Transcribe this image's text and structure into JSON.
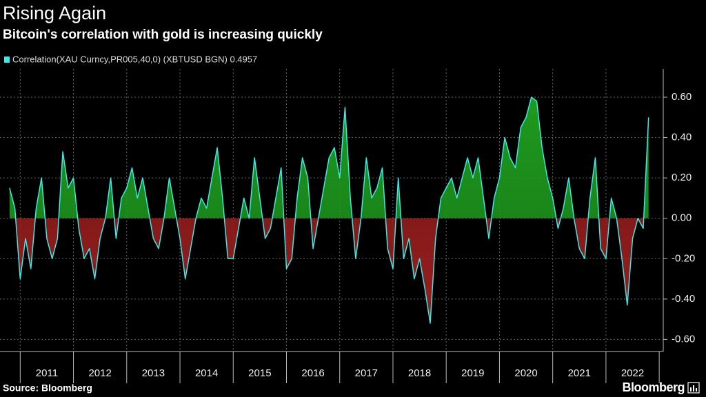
{
  "chart_data": {
    "type": "line",
    "title": "Rising Again",
    "subtitle": "Bitcoin's correlation with gold is increasing quickly",
    "x": [
      2010.8,
      2010.9,
      2011.0,
      2011.1,
      2011.2,
      2011.3,
      2011.4,
      2011.5,
      2011.6,
      2011.7,
      2011.8,
      2011.9,
      2012.0,
      2012.1,
      2012.2,
      2012.3,
      2012.4,
      2012.5,
      2012.6,
      2012.7,
      2012.8,
      2012.9,
      2013.0,
      2013.1,
      2013.2,
      2013.3,
      2013.4,
      2013.5,
      2013.6,
      2013.7,
      2013.8,
      2013.9,
      2014.0,
      2014.1,
      2014.2,
      2014.3,
      2014.4,
      2014.5,
      2014.6,
      2014.7,
      2014.8,
      2014.9,
      2015.0,
      2015.1,
      2015.2,
      2015.3,
      2015.4,
      2015.5,
      2015.6,
      2015.7,
      2015.8,
      2015.9,
      2016.0,
      2016.1,
      2016.2,
      2016.3,
      2016.4,
      2016.5,
      2016.6,
      2016.7,
      2016.8,
      2016.9,
      2017.0,
      2017.1,
      2017.2,
      2017.3,
      2017.4,
      2017.5,
      2017.6,
      2017.7,
      2017.8,
      2017.9,
      2018.0,
      2018.1,
      2018.2,
      2018.3,
      2018.4,
      2018.5,
      2018.6,
      2018.7,
      2018.8,
      2018.9,
      2019.0,
      2019.1,
      2019.2,
      2019.3,
      2019.4,
      2019.5,
      2019.6,
      2019.7,
      2019.8,
      2019.9,
      2020.0,
      2020.1,
      2020.2,
      2020.3,
      2020.4,
      2020.5,
      2020.6,
      2020.7,
      2020.8,
      2020.9,
      2021.0,
      2021.1,
      2021.2,
      2021.3,
      2021.4,
      2021.5,
      2021.6,
      2021.7,
      2021.8,
      2021.9,
      2022.0,
      2022.1,
      2022.2,
      2022.3,
      2022.4,
      2022.5,
      2022.6,
      2022.7,
      2022.8
    ],
    "series": [
      {
        "name": "Correlation(XAU Curncy,PR005,40,0) (XBTUSD BGN) 0.4957",
        "color": "#40e8e8",
        "values": [
          0.15,
          0.05,
          -0.3,
          -0.1,
          -0.25,
          0.05,
          0.2,
          -0.1,
          -0.2,
          -0.1,
          0.33,
          0.15,
          0.2,
          -0.05,
          -0.2,
          -0.15,
          -0.3,
          -0.1,
          0.0,
          0.2,
          -0.1,
          0.1,
          0.15,
          0.25,
          0.1,
          0.2,
          0.05,
          -0.1,
          -0.15,
          0.0,
          0.2,
          0.05,
          -0.1,
          -0.3,
          -0.15,
          0.0,
          0.1,
          0.05,
          0.2,
          0.35,
          0.1,
          -0.2,
          -0.2,
          -0.05,
          0.1,
          0.0,
          0.3,
          0.1,
          -0.1,
          -0.05,
          0.1,
          0.25,
          -0.25,
          -0.2,
          0.1,
          0.3,
          0.2,
          -0.15,
          0.0,
          0.15,
          0.3,
          0.35,
          0.2,
          0.55,
          0.1,
          -0.2,
          0.0,
          0.3,
          0.1,
          0.15,
          0.25,
          -0.15,
          -0.25,
          0.2,
          -0.2,
          -0.1,
          -0.3,
          -0.2,
          -0.35,
          -0.52,
          -0.1,
          0.1,
          0.15,
          0.2,
          0.1,
          0.2,
          0.3,
          0.2,
          0.3,
          0.1,
          -0.1,
          0.1,
          0.2,
          0.4,
          0.3,
          0.25,
          0.45,
          0.5,
          0.6,
          0.58,
          0.35,
          0.2,
          0.1,
          -0.05,
          0.05,
          0.2,
          0.0,
          -0.15,
          -0.2,
          0.1,
          0.3,
          -0.15,
          -0.2,
          0.1,
          0.0,
          -0.2,
          -0.43,
          -0.1,
          0.0,
          -0.05,
          0.5
        ]
      }
    ],
    "positive_color": "#1e9a1e",
    "negative_color": "#9a1e1e",
    "xlim": [
      2010.75,
      2023.05
    ],
    "xticks": [
      {
        "value": 2011.5,
        "label": "2011"
      },
      {
        "value": 2012.5,
        "label": "2012"
      },
      {
        "value": 2013.5,
        "label": "2013"
      },
      {
        "value": 2014.5,
        "label": "2014"
      },
      {
        "value": 2015.5,
        "label": "2015"
      },
      {
        "value": 2016.5,
        "label": "2016"
      },
      {
        "value": 2017.5,
        "label": "2017"
      },
      {
        "value": 2018.5,
        "label": "2018"
      },
      {
        "value": 2019.5,
        "label": "2019"
      },
      {
        "value": 2020.5,
        "label": "2020"
      },
      {
        "value": 2021.5,
        "label": "2021"
      },
      {
        "value": 2022.5,
        "label": "2022"
      }
    ],
    "ylim": [
      -0.66,
      0.74
    ],
    "yticks": [
      {
        "value": -0.6,
        "label": "-0.60"
      },
      {
        "value": -0.4,
        "label": "-0.40"
      },
      {
        "value": -0.2,
        "label": "-0.20"
      },
      {
        "value": 0,
        "label": "0.00"
      },
      {
        "value": 0.2,
        "label": "0.20"
      },
      {
        "value": 0.4,
        "label": "0.40"
      },
      {
        "value": 0.6,
        "label": "0.60"
      }
    ],
    "grid": true
  },
  "footer": {
    "source": "Source: Bloomberg",
    "logo": "Bloomberg"
  }
}
